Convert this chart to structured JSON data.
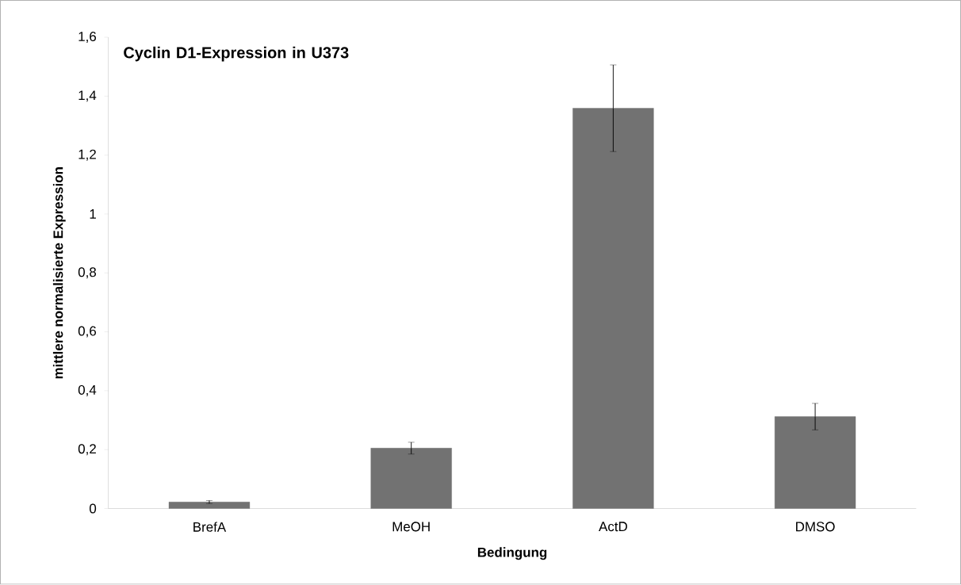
{
  "chart_data": {
    "type": "bar",
    "title": "Cyclin D1-Expression in U373",
    "xlabel": "Bedingung",
    "ylabel": "mittlere normalisierte Expression",
    "categories": [
      "BrefA",
      "MeOH",
      "ActD",
      "DMSO"
    ],
    "values": [
      0.022,
      0.205,
      1.359,
      0.312
    ],
    "errors": [
      0.005,
      0.02,
      0.147,
      0.045
    ],
    "color": "#727272",
    "ylim": [
      0,
      1.6
    ],
    "yticks": [
      0,
      {
        "value": 0.2,
        "label": "0,2"
      },
      {
        "value": 0.4,
        "label": "0,4"
      },
      {
        "value": 0.6,
        "label": "0,6"
      },
      {
        "value": 0.8,
        "label": "0,8"
      },
      1,
      {
        "value": 1.2,
        "label": "1,2"
      },
      {
        "value": 1.4,
        "label": "1,4"
      },
      {
        "value": 1.6,
        "label": "1,6"
      }
    ],
    "grid": false
  }
}
